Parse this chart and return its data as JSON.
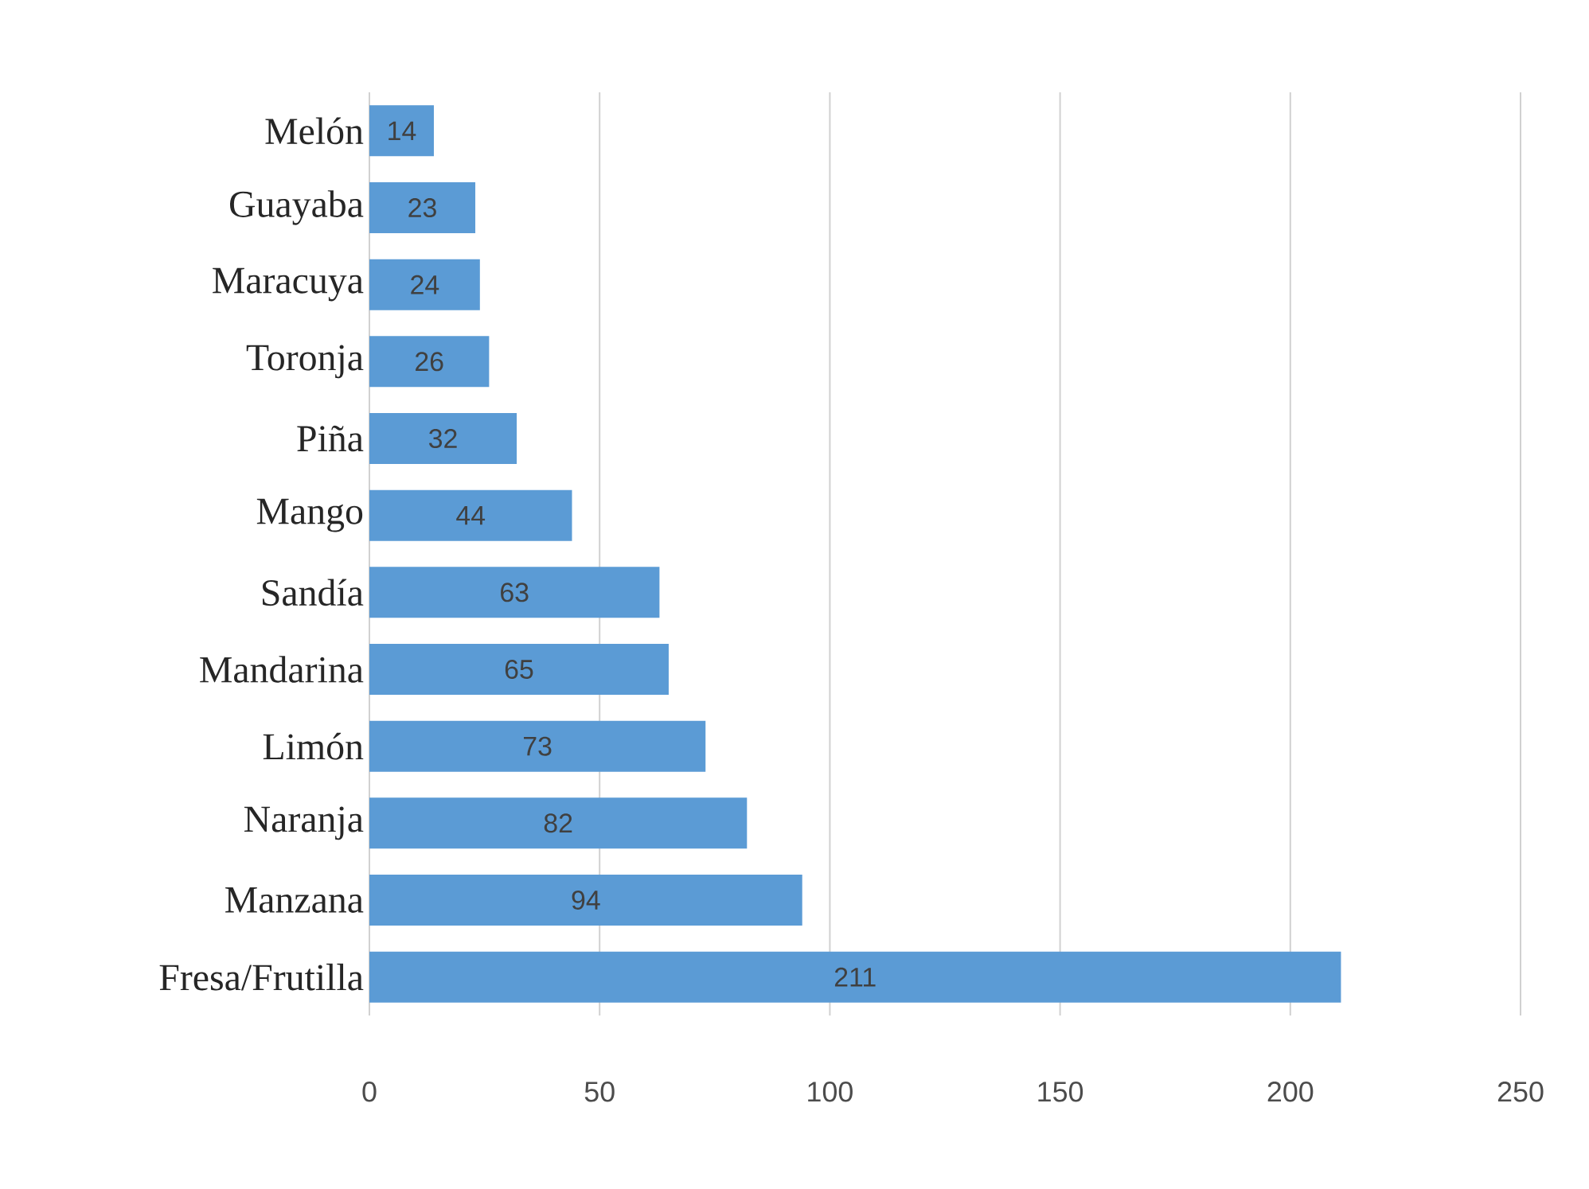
{
  "chart_data": {
    "type": "bar",
    "orientation": "horizontal",
    "categories": [
      "Melón",
      "Guayaba",
      "Maracuya",
      "Toronja",
      "Piña",
      "Mango",
      "Sandía",
      "Mandarina",
      "Limón",
      "Naranja",
      "Manzana",
      "Fresa/Frutilla"
    ],
    "values": [
      14,
      23,
      24,
      26,
      32,
      44,
      63,
      65,
      73,
      82,
      94,
      211
    ],
    "color": "#5b9bd5",
    "xlim": [
      0,
      250
    ],
    "xticks": [
      0,
      50,
      100,
      150,
      200,
      250
    ],
    "grid": "x",
    "data_labels": true
  }
}
